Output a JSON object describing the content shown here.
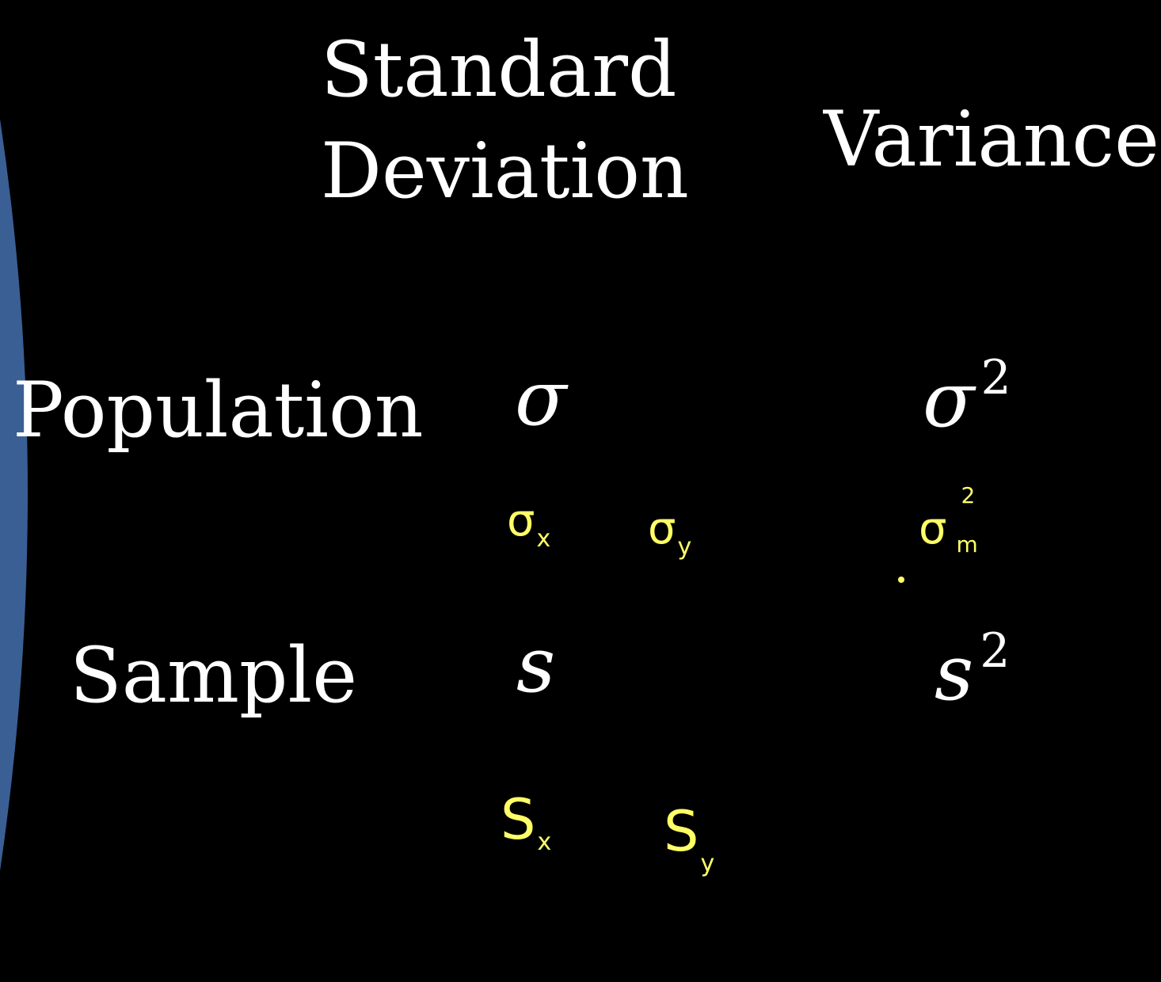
{
  "colors": {
    "background": "#000000",
    "text": "#ffffff",
    "ink": "#ffff66",
    "arc": "#3a5f94"
  },
  "header": {
    "col1_line1": "Standard",
    "col1_line2": "Deviation",
    "col2": "Variance"
  },
  "rows": {
    "population": {
      "label": "Population",
      "sd_symbol": "σ",
      "var_symbol": "σ",
      "var_exponent": "2"
    },
    "sample": {
      "label": "Sample",
      "sd_symbol": "s",
      "var_symbol": "s",
      "var_exponent": "2"
    }
  },
  "annotations": {
    "sigma_x": {
      "base": "σ",
      "sub": "x"
    },
    "sigma_y": {
      "base": "σ",
      "sub": "y"
    },
    "sigma_m": {
      "base": "σ",
      "sup": "2",
      "sub": "m"
    },
    "s_x": {
      "base": "S",
      "sub": "x"
    },
    "s_y": {
      "base": "S",
      "sub": "y"
    }
  }
}
